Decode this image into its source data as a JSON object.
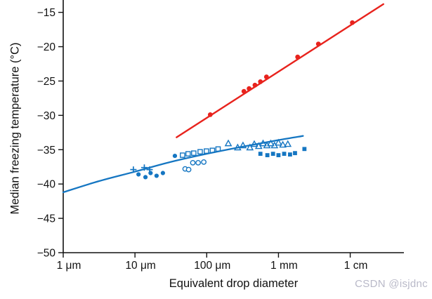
{
  "watermark": {
    "text": "CSDN @isjdnc",
    "color": "#b9b9c8"
  },
  "chart_data": {
    "type": "scatter",
    "title": "",
    "xlabel": "Equivalent drop diameter",
    "ylabel": "Median freezing temperature (°C)",
    "x_scale": "log",
    "xlim": [
      1e-06,
      0.056
    ],
    "ylim": [
      -50,
      -13.2
    ],
    "grid": false,
    "legend": "none",
    "colors": {
      "red": "#e8231d",
      "blue": "#1576c2",
      "axis": "#111111"
    },
    "x_ticks": [
      {
        "value": 1e-06,
        "label": "1 μm"
      },
      {
        "value": 1e-05,
        "label": "10 μm"
      },
      {
        "value": 0.0001,
        "label": "100 μm"
      },
      {
        "value": 0.001,
        "label": "1 mm"
      },
      {
        "value": 0.01,
        "label": "1 cm"
      }
    ],
    "y_ticks": [
      {
        "value": -15,
        "label": "−15"
      },
      {
        "value": -20,
        "label": "−20"
      },
      {
        "value": -25,
        "label": "−25"
      },
      {
        "value": -30,
        "label": "−30"
      },
      {
        "value": -35,
        "label": "−35"
      },
      {
        "value": -40,
        "label": "−40"
      },
      {
        "value": -45,
        "label": "−45"
      },
      {
        "value": -50,
        "label": "−50"
      }
    ],
    "series": [
      {
        "name": "large-drops-fit-line",
        "kind": "line",
        "color_key": "red",
        "width": 2.4,
        "smooth": false,
        "points": [
          [
            3.8e-05,
            -33.2
          ],
          [
            0.029,
            -13.8
          ]
        ]
      },
      {
        "name": "large-drops-observations",
        "kind": "scatter",
        "marker": "circle-filled",
        "color_key": "red",
        "size": 3.4,
        "points": [
          [
            0.000112,
            -29.9
          ],
          [
            0.00033,
            -26.5
          ],
          [
            0.00039,
            -26.1
          ],
          [
            0.00047,
            -25.6
          ],
          [
            0.00056,
            -25.1
          ],
          [
            0.00068,
            -24.4
          ],
          [
            0.00185,
            -21.5
          ],
          [
            0.0036,
            -19.6
          ],
          [
            0.0107,
            -16.5
          ]
        ]
      },
      {
        "name": "small-drops-fit-curve",
        "kind": "line",
        "color_key": "blue",
        "width": 2.3,
        "smooth": true,
        "points": [
          [
            1e-06,
            -41.2
          ],
          [
            3.1e-06,
            -39.6
          ],
          [
            1e-05,
            -38.2
          ],
          [
            3.1e-05,
            -36.8
          ],
          [
            0.0001,
            -35.6
          ],
          [
            0.00034,
            -34.5
          ],
          [
            0.001,
            -33.6
          ],
          [
            0.0022,
            -33.0
          ]
        ]
      },
      {
        "name": "blue-plus-points",
        "kind": "scatter",
        "marker": "plus",
        "color_key": "blue",
        "size": 4.5,
        "points": [
          [
            9.5e-06,
            -37.9
          ],
          [
            1.35e-05,
            -37.6
          ],
          [
            1.6e-05,
            -37.9
          ]
        ]
      },
      {
        "name": "blue-filled-circle-points",
        "kind": "scatter",
        "marker": "circle-filled",
        "color_key": "blue",
        "size": 3.1,
        "points": [
          [
            1.12e-05,
            -38.6
          ],
          [
            1.4e-05,
            -39.0
          ],
          [
            1.65e-05,
            -38.4
          ],
          [
            2e-05,
            -38.8
          ],
          [
            2.45e-05,
            -38.4
          ],
          [
            3.6e-05,
            -35.9
          ]
        ]
      },
      {
        "name": "blue-open-circle-points",
        "kind": "scatter",
        "marker": "circle-open",
        "color_key": "blue",
        "size": 3.2,
        "points": [
          [
            5e-05,
            -37.8
          ],
          [
            5.6e-05,
            -37.9
          ],
          [
            6.4e-05,
            -36.9
          ],
          [
            7.6e-05,
            -36.9
          ],
          [
            9.1e-05,
            -36.8
          ]
        ]
      },
      {
        "name": "blue-open-square-points",
        "kind": "scatter",
        "marker": "square-open",
        "color_key": "blue",
        "size": 3.1,
        "points": [
          [
            4.6e-05,
            -35.8
          ],
          [
            5.5e-05,
            -35.6
          ],
          [
            6.6e-05,
            -35.5
          ],
          [
            8.1e-05,
            -35.3
          ],
          [
            9.9e-05,
            -35.2
          ],
          [
            0.00012,
            -35.1
          ],
          [
            0.000144,
            -34.9
          ]
        ]
      },
      {
        "name": "blue-open-triangle-points",
        "kind": "scatter",
        "marker": "triangle-open",
        "color_key": "blue",
        "size": 4.4,
        "points": [
          [
            0.0002,
            -34.1
          ],
          [
            0.00027,
            -34.7
          ],
          [
            0.00032,
            -34.4
          ],
          [
            0.0004,
            -34.7
          ],
          [
            0.00046,
            -34.2
          ],
          [
            0.00053,
            -34.5
          ],
          [
            0.00061,
            -34.1
          ],
          [
            0.00069,
            -34.4
          ],
          [
            0.00078,
            -34.1
          ],
          [
            0.00088,
            -34.4
          ],
          [
            0.001,
            -34.0
          ],
          [
            0.00115,
            -34.3
          ],
          [
            0.00135,
            -34.2
          ]
        ]
      },
      {
        "name": "blue-filled-square-points",
        "kind": "scatter",
        "marker": "square-filled",
        "color_key": "blue",
        "size": 2.9,
        "points": [
          [
            0.00056,
            -35.6
          ],
          [
            0.0007,
            -35.8
          ],
          [
            0.00084,
            -35.6
          ],
          [
            0.001,
            -35.8
          ],
          [
            0.0012,
            -35.6
          ],
          [
            0.00145,
            -35.7
          ],
          [
            0.0017,
            -35.5
          ],
          [
            0.0023,
            -34.9
          ]
        ]
      }
    ]
  }
}
